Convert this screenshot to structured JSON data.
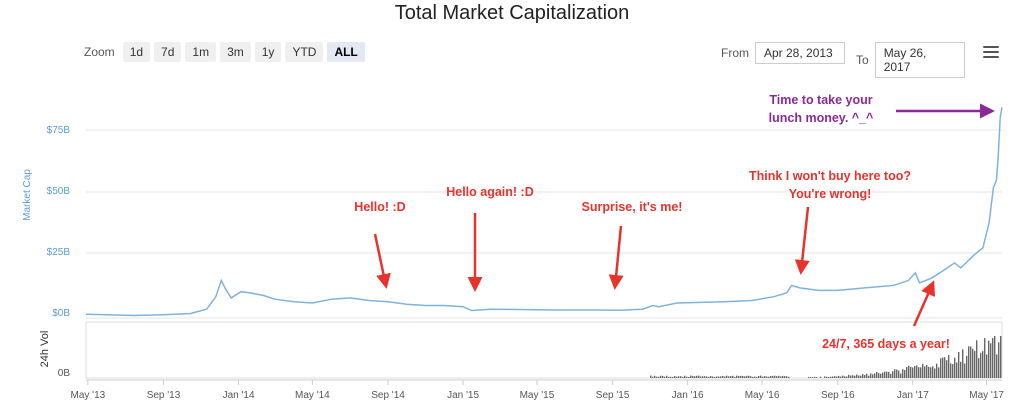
{
  "title": "Total Market Capitalization",
  "zoom": {
    "label": "Zoom",
    "buttons": [
      "1d",
      "7d",
      "1m",
      "3m",
      "1y",
      "YTD",
      "ALL"
    ],
    "active": "ALL"
  },
  "range": {
    "from_label": "From",
    "from_value": "Apr 28, 2013",
    "to_label": "To",
    "to_value": "May 26, 2017"
  },
  "colors": {
    "line": "#7fb3de",
    "annotation_red": "#e8322c",
    "annotation_purple": "#8b2a97",
    "volume": "#666666"
  },
  "chart_data": {
    "type": "line",
    "title": "Total Market Capitalization",
    "ylabel": "Market Cap",
    "ylabel2": "24h Vol",
    "yticks": [
      "$0B",
      "$25B",
      "$50B",
      "$75B"
    ],
    "ylim": [
      0,
      90
    ],
    "vol_tick": "0B",
    "xticks": [
      "May '13",
      "Sep '13",
      "Jan '14",
      "May '14",
      "Sep '14",
      "Jan '15",
      "May '15",
      "Sep '15",
      "Jan '16",
      "May '16",
      "Sep '16",
      "Jan '17",
      "May '17"
    ],
    "x_range": [
      "2013-04-28",
      "2017-05-26"
    ],
    "series": [
      {
        "points": [
          [
            "2013-04-28",
            1.5
          ],
          [
            "2013-06-01",
            1.3
          ],
          [
            "2013-07-15",
            1.0
          ],
          [
            "2013-09-01",
            1.3
          ],
          [
            "2013-10-15",
            1.8
          ],
          [
            "2013-11-10",
            3.5
          ],
          [
            "2013-11-25",
            8.5
          ],
          [
            "2013-12-04",
            15.0
          ],
          [
            "2013-12-10",
            12.0
          ],
          [
            "2013-12-20",
            8.0
          ],
          [
            "2014-01-05",
            10.5
          ],
          [
            "2014-01-20",
            10.0
          ],
          [
            "2014-02-10",
            9.0
          ],
          [
            "2014-03-01",
            7.5
          ],
          [
            "2014-04-01",
            6.5
          ],
          [
            "2014-05-01",
            6.0
          ],
          [
            "2014-06-01",
            7.5
          ],
          [
            "2014-07-01",
            8.0
          ],
          [
            "2014-08-01",
            7.0
          ],
          [
            "2014-09-01",
            6.5
          ],
          [
            "2014-10-01",
            5.5
          ],
          [
            "2014-11-01",
            5.0
          ],
          [
            "2014-12-01",
            5.0
          ],
          [
            "2015-01-01",
            4.5
          ],
          [
            "2015-01-15",
            3.0
          ],
          [
            "2015-02-15",
            3.5
          ],
          [
            "2015-04-01",
            3.4
          ],
          [
            "2015-06-01",
            3.2
          ],
          [
            "2015-08-01",
            3.2
          ],
          [
            "2015-09-15",
            3.1
          ],
          [
            "2015-10-20",
            3.5
          ],
          [
            "2015-11-05",
            5.0
          ],
          [
            "2015-11-15",
            4.5
          ],
          [
            "2015-12-15",
            6.0
          ],
          [
            "2016-01-15",
            6.2
          ],
          [
            "2016-03-01",
            6.5
          ],
          [
            "2016-04-15",
            7.0
          ],
          [
            "2016-05-20",
            8.5
          ],
          [
            "2016-06-10",
            10.0
          ],
          [
            "2016-06-18",
            13.0
          ],
          [
            "2016-07-01",
            12.0
          ],
          [
            "2016-08-01",
            11.0
          ],
          [
            "2016-09-01",
            11.0
          ],
          [
            "2016-10-15",
            12.0
          ],
          [
            "2016-12-01",
            13.0
          ],
          [
            "2016-12-25",
            15.0
          ],
          [
            "2017-01-05",
            18.0
          ],
          [
            "2017-01-12",
            14.0
          ],
          [
            "2017-02-01",
            16.0
          ],
          [
            "2017-02-20",
            19.0
          ],
          [
            "2017-03-10",
            22.0
          ],
          [
            "2017-03-20",
            20.0
          ],
          [
            "2017-04-10",
            25.0
          ],
          [
            "2017-04-25",
            28.0
          ],
          [
            "2017-05-05",
            38.0
          ],
          [
            "2017-05-12",
            52.0
          ],
          [
            "2017-05-17",
            55.0
          ],
          [
            "2017-05-20",
            65.0
          ],
          [
            "2017-05-23",
            80.0
          ],
          [
            "2017-05-26",
            84.0
          ]
        ]
      }
    ],
    "annotations": [
      {
        "text": "Hello! :D",
        "color": "red",
        "date": "2014-09-15",
        "value": 7
      },
      {
        "text": "Hello again! :D",
        "color": "red",
        "date": "2015-01-20",
        "value": 4
      },
      {
        "text": "Surprise, it's me!",
        "color": "red",
        "date": "2015-09-20",
        "value": 3
      },
      {
        "text": "Think I won't buy here too?",
        "text2": "You're wrong!",
        "color": "red",
        "date": "2016-07-15",
        "value": 12
      },
      {
        "text": "Time to take your",
        "text2": "lunch money. ^_^",
        "color": "purple",
        "date": "2017-05-20",
        "value": 80
      },
      {
        "text": "24/7, 365 days a year!",
        "color": "red",
        "date": "2017-02-01",
        "value": 16
      }
    ]
  }
}
